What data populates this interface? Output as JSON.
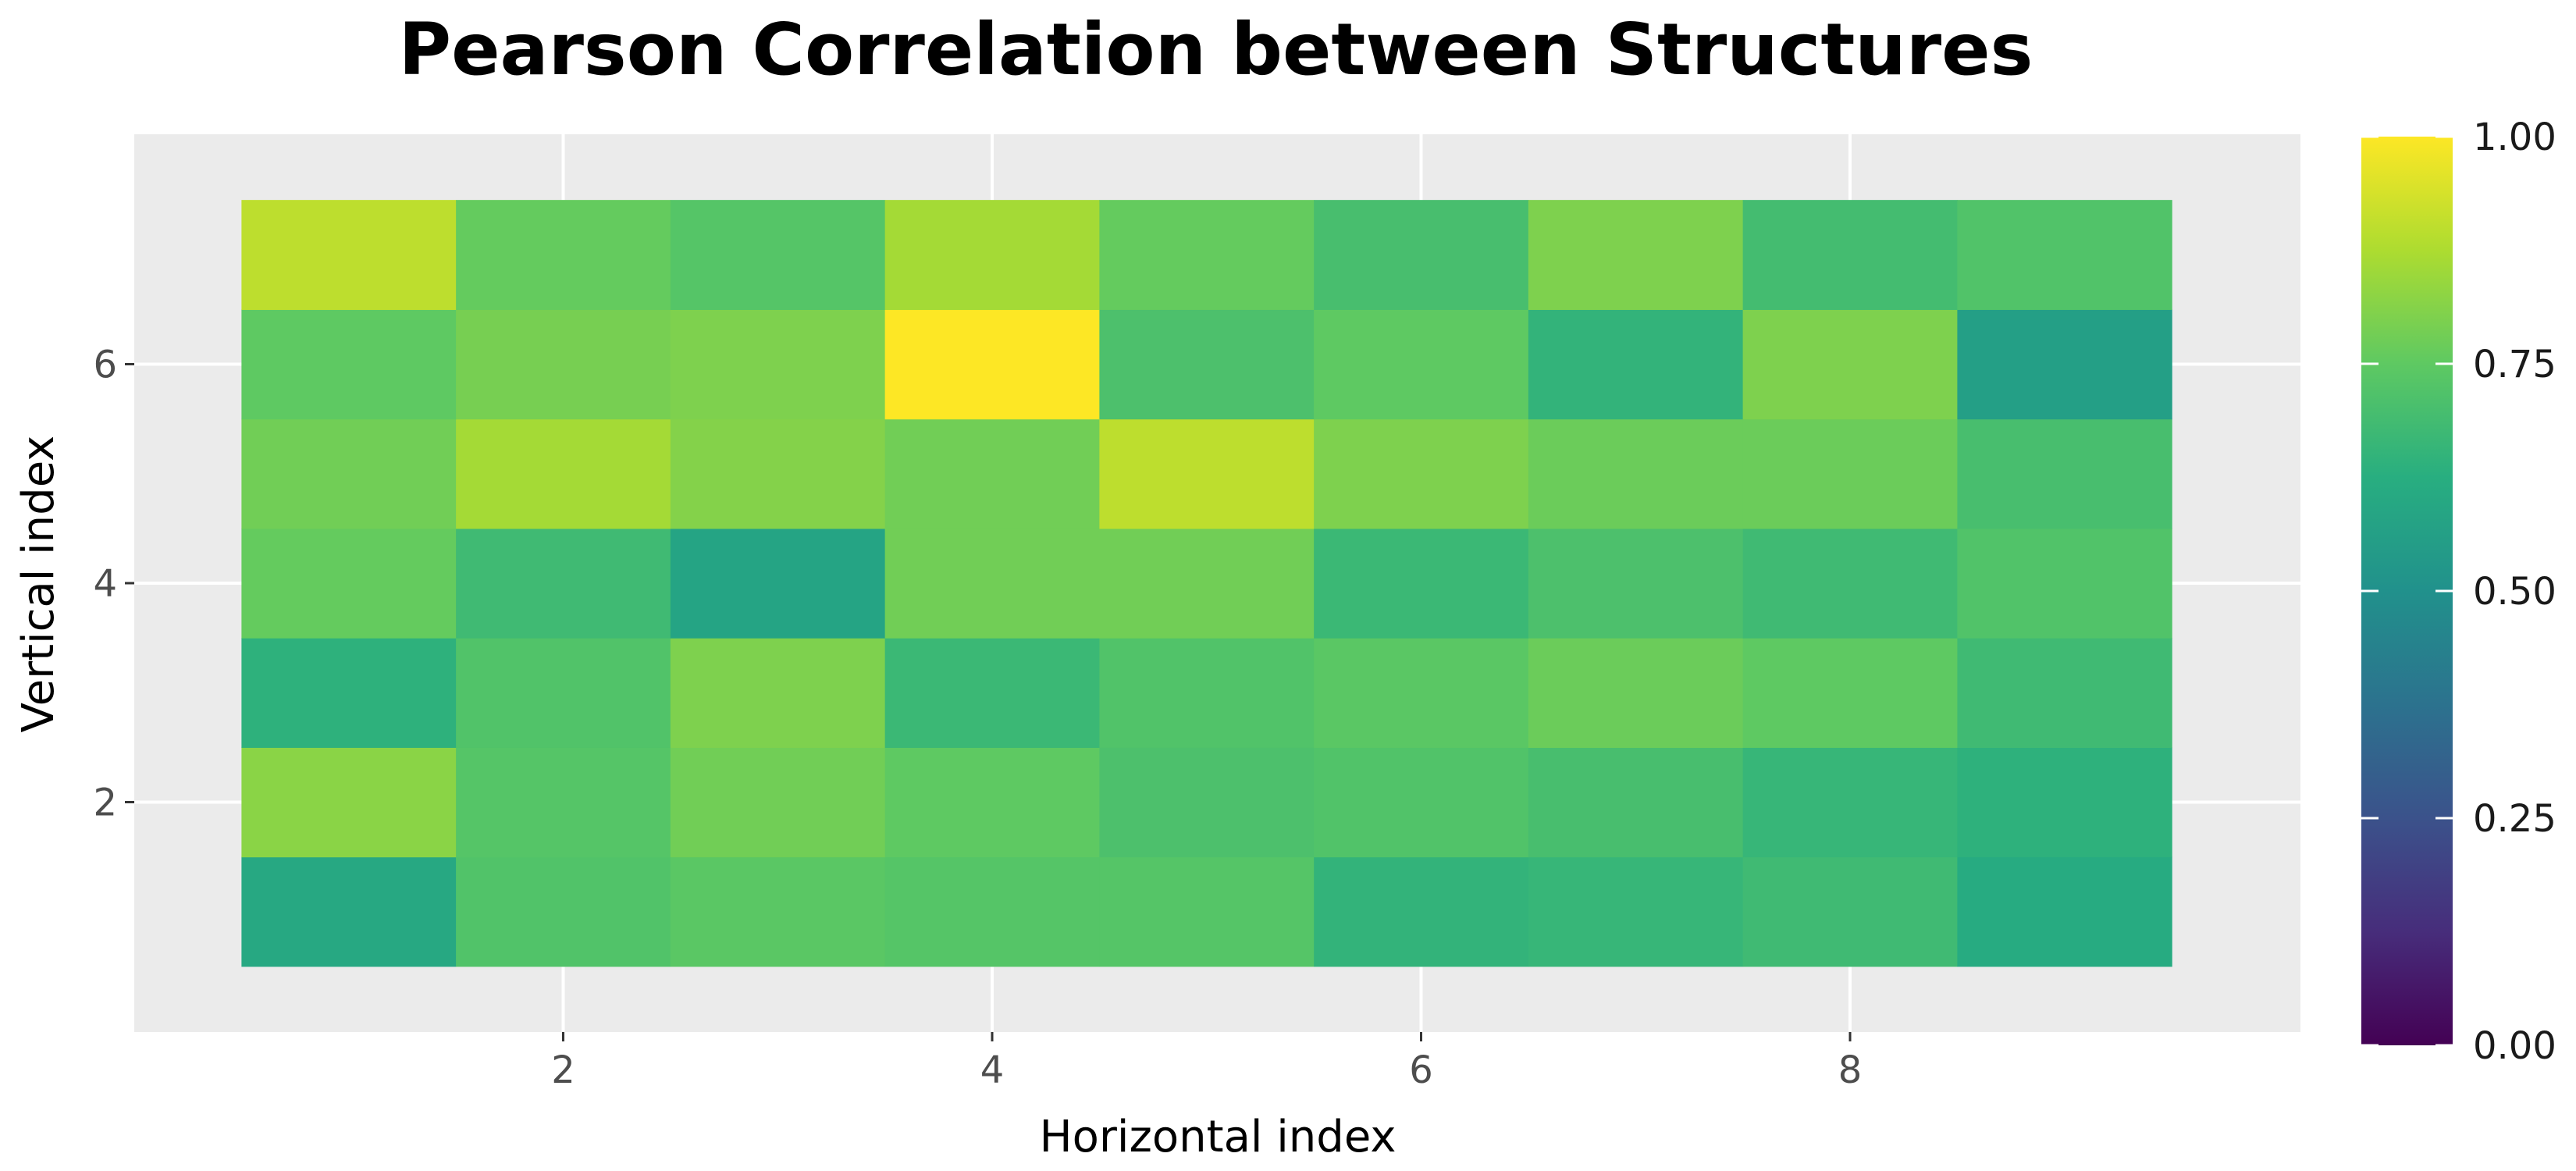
{
  "chart_data": {
    "type": "heatmap",
    "title": "Pearson Correlation between Structures",
    "xlabel": "Horizontal index",
    "ylabel": "Vertical index",
    "x": [
      1,
      2,
      3,
      4,
      5,
      6,
      7,
      8,
      9
    ],
    "y": [
      1,
      2,
      3,
      4,
      5,
      6,
      7
    ],
    "xlim": [
      0,
      10.1
    ],
    "ylim": [
      -0.1,
      8.1
    ],
    "x_ticks": [
      2,
      4,
      6,
      8
    ],
    "y_ticks": [
      2,
      4,
      6
    ],
    "z_rows_bottom_to_top": [
      [
        0.6,
        0.72,
        0.74,
        0.73,
        0.73,
        0.65,
        0.66,
        0.68,
        0.61
      ],
      [
        0.82,
        0.73,
        0.78,
        0.75,
        0.71,
        0.72,
        0.7,
        0.66,
        0.64
      ],
      [
        0.64,
        0.72,
        0.8,
        0.67,
        0.72,
        0.74,
        0.77,
        0.75,
        0.68
      ],
      [
        0.76,
        0.68,
        0.58,
        0.78,
        0.78,
        0.67,
        0.71,
        0.68,
        0.72
      ],
      [
        0.78,
        0.86,
        0.81,
        0.78,
        0.9,
        0.8,
        0.77,
        0.77,
        0.7
      ],
      [
        0.75,
        0.79,
        0.8,
        1.0,
        0.71,
        0.75,
        0.65,
        0.8,
        0.56
      ],
      [
        0.9,
        0.76,
        0.73,
        0.86,
        0.76,
        0.7,
        0.8,
        0.69,
        0.72
      ]
    ],
    "colorbar": {
      "min": 0.0,
      "max": 1.0,
      "ticks": [
        0.0,
        0.25,
        0.5,
        0.75,
        1.0
      ],
      "tick_labels": [
        "0.00",
        "0.25",
        "0.50",
        "0.75",
        "1.00"
      ],
      "colormap": "viridis"
    },
    "panel_background": "#ebebeb",
    "gridline_color": "#ffffff",
    "grid": true
  }
}
